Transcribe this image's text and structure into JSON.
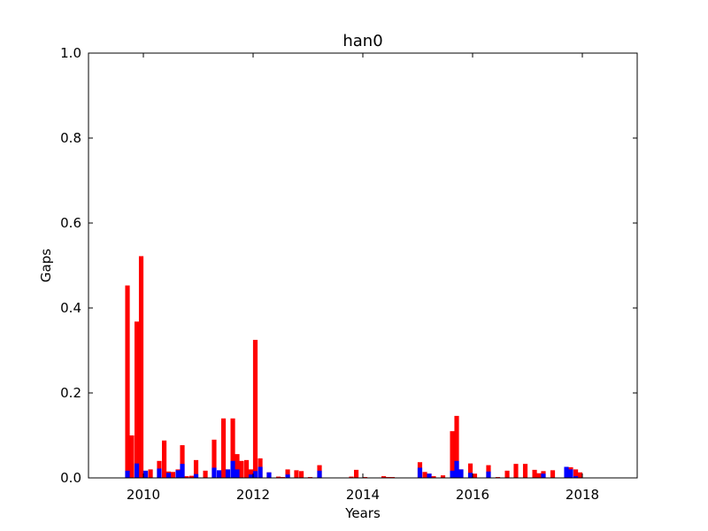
{
  "chart_data": {
    "type": "bar",
    "title": "han0",
    "xlabel": "Years",
    "ylabel": "Gaps",
    "xlim": [
      2009.0,
      2019.0
    ],
    "ylim": [
      0.0,
      1.0
    ],
    "xticks": [
      2010,
      2012,
      2014,
      2016,
      2018
    ],
    "xtick_labels": [
      "2010",
      "2012",
      "2014",
      "2016",
      "2018"
    ],
    "yticks": [
      0.0,
      0.2,
      0.4,
      0.6,
      0.8,
      1.0
    ],
    "ytick_labels": [
      "0.0",
      "0.2",
      "0.4",
      "0.6",
      "0.8",
      "1.0"
    ],
    "grid": false,
    "bar_width_years": 0.0833,
    "series": [
      {
        "color": "#ff0000",
        "x": [
          2009.71,
          2009.79,
          2009.88,
          2009.96,
          2010.04,
          2010.13,
          2010.29,
          2010.38,
          2010.46,
          2010.54,
          2010.63,
          2010.71,
          2010.79,
          2010.88,
          2010.96,
          2011.13,
          2011.29,
          2011.46,
          2011.54,
          2011.63,
          2011.71,
          2011.79,
          2011.88,
          2011.96,
          2012.04,
          2012.13,
          2012.29,
          2012.46,
          2012.54,
          2012.63,
          2012.79,
          2012.88,
          2013.04,
          2013.21,
          2013.79,
          2013.88,
          2014.04,
          2014.38,
          2014.46,
          2014.54,
          2014.63,
          2015.04,
          2015.13,
          2015.21,
          2015.29,
          2015.46,
          2015.63,
          2015.71,
          2015.79,
          2015.96,
          2016.04,
          2016.29,
          2016.46,
          2016.63,
          2016.79,
          2016.96,
          2017.13,
          2017.21,
          2017.29,
          2017.46,
          2017.79,
          2017.88,
          2017.96
        ],
        "values": [
          0.453,
          0.1,
          0.368,
          0.522,
          0.015,
          0.02,
          0.04,
          0.088,
          0.015,
          0.014,
          0.02,
          0.077,
          0.004,
          0.005,
          0.042,
          0.017,
          0.09,
          0.14,
          0.02,
          0.14,
          0.056,
          0.04,
          0.042,
          0.02,
          0.325,
          0.046,
          0.013,
          0.003,
          0.002,
          0.02,
          0.018,
          0.016,
          0.002,
          0.03,
          0.003,
          0.019,
          0.002,
          0.004,
          0.002,
          0.002,
          0.001,
          0.037,
          0.014,
          0.01,
          0.004,
          0.006,
          0.11,
          0.146,
          0.02,
          0.034,
          0.01,
          0.03,
          0.002,
          0.017,
          0.033,
          0.033,
          0.019,
          0.011,
          0.016,
          0.018,
          0.025,
          0.02,
          0.013
        ]
      },
      {
        "color": "#0000ff",
        "x": [
          2009.71,
          2009.88,
          2010.04,
          2010.29,
          2010.46,
          2010.63,
          2010.71,
          2010.96,
          2011.29,
          2011.38,
          2011.54,
          2011.63,
          2011.71,
          2011.96,
          2012.04,
          2012.13,
          2012.29,
          2012.63,
          2013.21,
          2015.04,
          2015.21,
          2015.63,
          2015.71,
          2015.79,
          2015.96,
          2016.29,
          2017.29,
          2017.71,
          2017.79,
          2017.88
        ],
        "values": [
          0.017,
          0.034,
          0.017,
          0.022,
          0.012,
          0.018,
          0.033,
          0.009,
          0.024,
          0.018,
          0.02,
          0.04,
          0.02,
          0.008,
          0.016,
          0.026,
          0.013,
          0.008,
          0.017,
          0.024,
          0.01,
          0.017,
          0.04,
          0.02,
          0.012,
          0.015,
          0.01,
          0.026,
          0.02,
          0.004
        ]
      }
    ]
  }
}
